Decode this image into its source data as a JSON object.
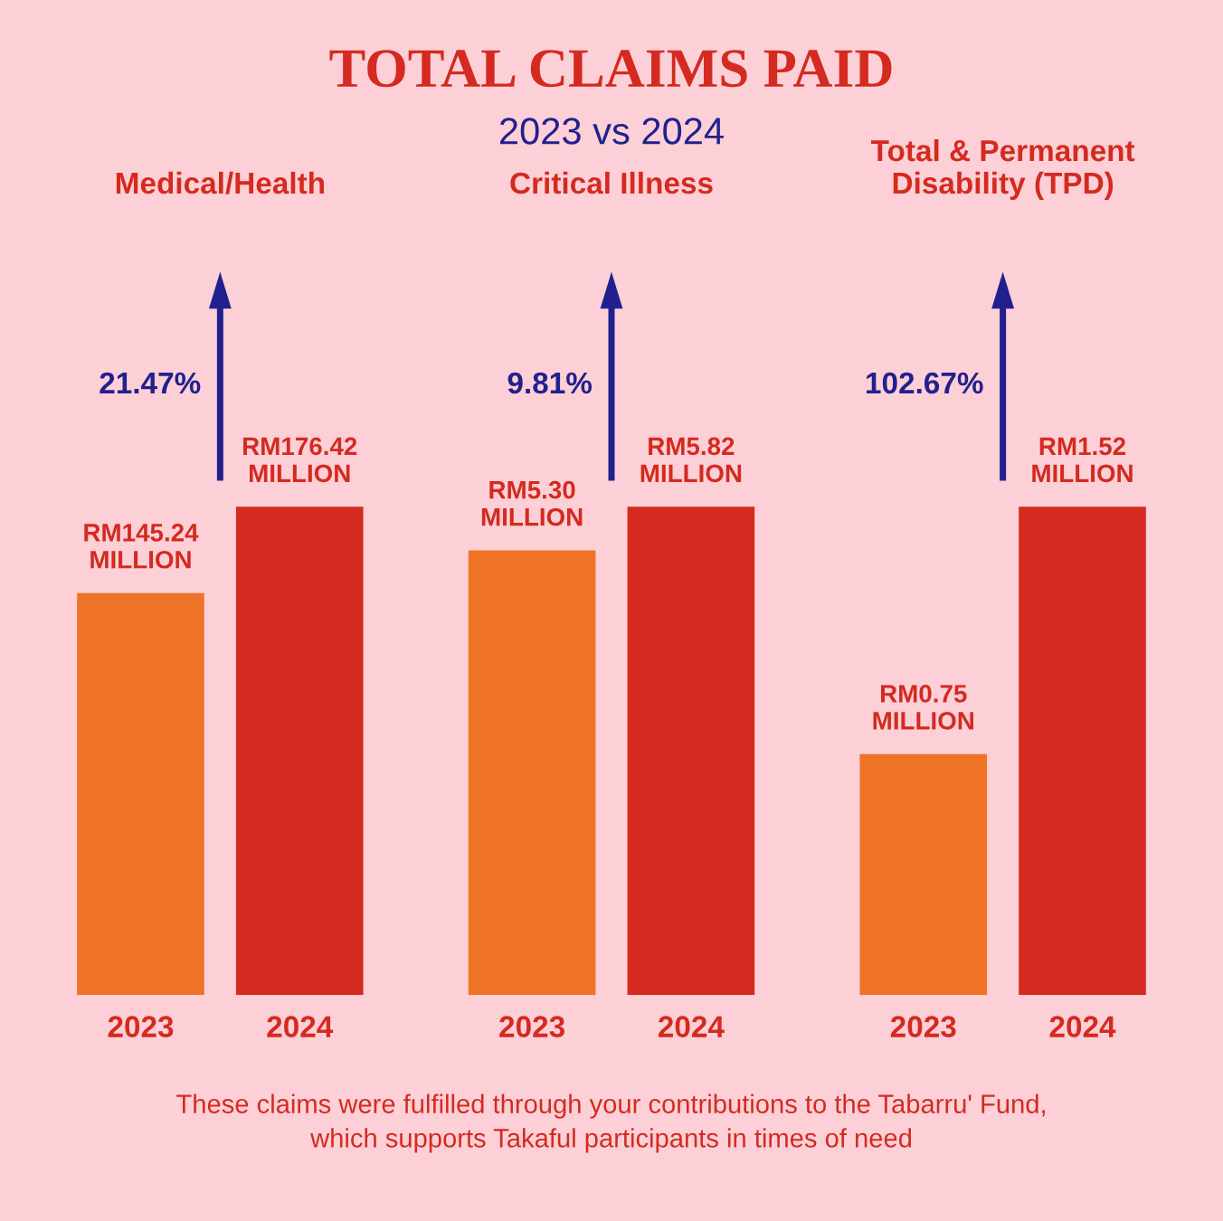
{
  "chart_data": [
    {
      "type": "other",
      "title": "TOTAL CLAIMS PAID",
      "subtitle": "2023 vs 2024",
      "annotations": [
        "These claims were fulfilled through your contributions to the Tabarru' Fund,\nwhich supports Takaful participants in times of need"
      ]
    },
    {
      "type": "bar",
      "title": "Medical/Health",
      "categories": [
        "2023",
        "2024"
      ],
      "values": [
        145.24,
        176.42
      ],
      "colors": [
        "#ee7327",
        "#d42a20"
      ],
      "value_labels": [
        "RM145.24\nMILLION",
        "RM176.42\nMILLION"
      ],
      "annotations": [
        "21.47%"
      ]
    },
    {
      "type": "bar",
      "title": "Critical Illness",
      "categories": [
        "2023",
        "2024"
      ],
      "values": [
        5.3,
        5.82
      ],
      "colors": [
        "#ee7327",
        "#d42a20"
      ],
      "value_labels": [
        "RM5.30\nMILLION",
        "RM5.82\nMILLION"
      ],
      "annotations": [
        "9.81%"
      ]
    },
    {
      "type": "bar",
      "title": "Total & Permanent\nDisability (TPD)",
      "categories": [
        "2023",
        "2024"
      ],
      "values": [
        0.75,
        1.52
      ],
      "colors": [
        "#ee7327",
        "#d42a20"
      ],
      "value_labels": [
        "RM0.75\nMILLION",
        "RM1.52\nMILLION"
      ],
      "annotations": [
        "102.67%"
      ]
    }
  ]
}
